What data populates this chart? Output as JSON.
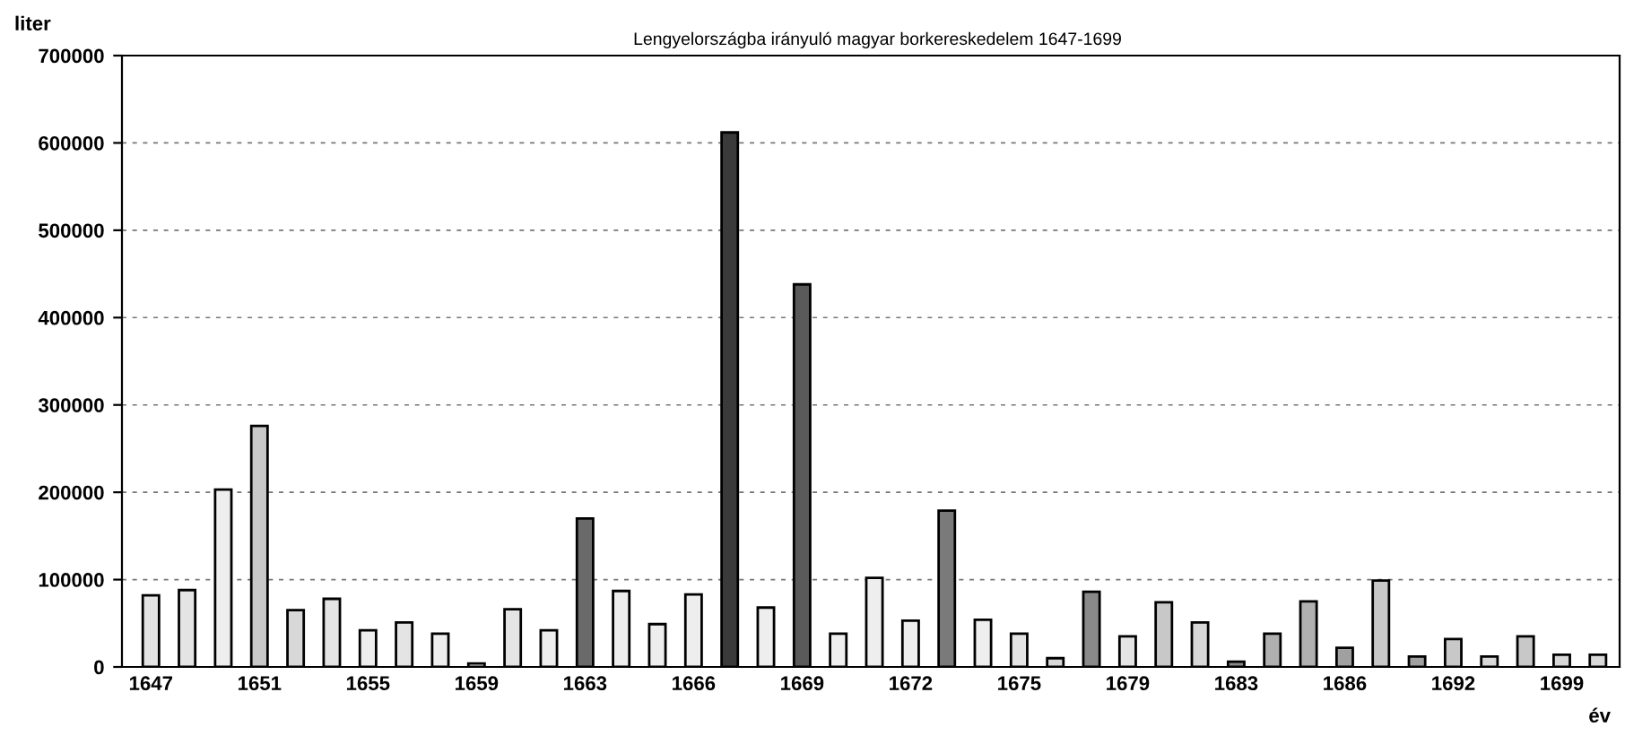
{
  "chart_data": {
    "type": "bar",
    "title": "Lengyelországba irányuló magyar borkereskedelem 1647-1699",
    "xlabel": "év",
    "ylabel": "liter",
    "categories": [
      "1647",
      null,
      null,
      "1651",
      null,
      null,
      "1655",
      null,
      null,
      "1659",
      null,
      null,
      "1663",
      null,
      null,
      "1666",
      null,
      null,
      "1669",
      null,
      null,
      "1672",
      null,
      null,
      "1675",
      null,
      null,
      "1679",
      null,
      null,
      "1683",
      null,
      null,
      "1686",
      null,
      null,
      "1692",
      null,
      null,
      "1699",
      null
    ],
    "values": [
      82000,
      88000,
      203000,
      276000,
      65000,
      78000,
      42000,
      51000,
      38000,
      4000,
      66000,
      42000,
      170000,
      87000,
      49000,
      83000,
      612000,
      68000,
      438000,
      38000,
      102000,
      53000,
      179000,
      54000,
      38000,
      10000,
      86000,
      35000,
      74000,
      51000,
      6000,
      38000,
      75000,
      22000,
      99000,
      12000,
      32000,
      12000,
      35000,
      14000,
      14000
    ],
    "colors": [
      "#e4e4e4",
      "#e4e4e4",
      "#eeeeee",
      "#c8c8c8",
      "#d8d8d8",
      "#e4e4e4",
      "#eeeeee",
      "#e4e4e4",
      "#eeeeee",
      "#eeeeee",
      "#e4e4e4",
      "#eeeeee",
      "#6a6a6a",
      "#eeeeee",
      "#eeeeee",
      "#eeeeee",
      "#3a3a3a",
      "#eeeeee",
      "#5a5a5a",
      "#eeeeee",
      "#eeeeee",
      "#eeeeee",
      "#7a7a7a",
      "#eeeeee",
      "#e4e4e4",
      "#d8d8d8",
      "#8a8a8a",
      "#e4e4e4",
      "#c8c8c8",
      "#d8d8d8",
      "#8a8a8a",
      "#b0b0b0",
      "#b0b0b0",
      "#a0a0a0",
      "#c8c8c8",
      "#a0a0a0",
      "#c8c8c8",
      "#d8d8d8",
      "#c8c8c8",
      "#d8d8d8",
      "#d8d8d8"
    ],
    "ylim": [
      0,
      700000
    ],
    "yticks": [
      0,
      100000,
      200000,
      300000,
      400000,
      500000,
      600000,
      700000
    ],
    "grid": "y"
  }
}
